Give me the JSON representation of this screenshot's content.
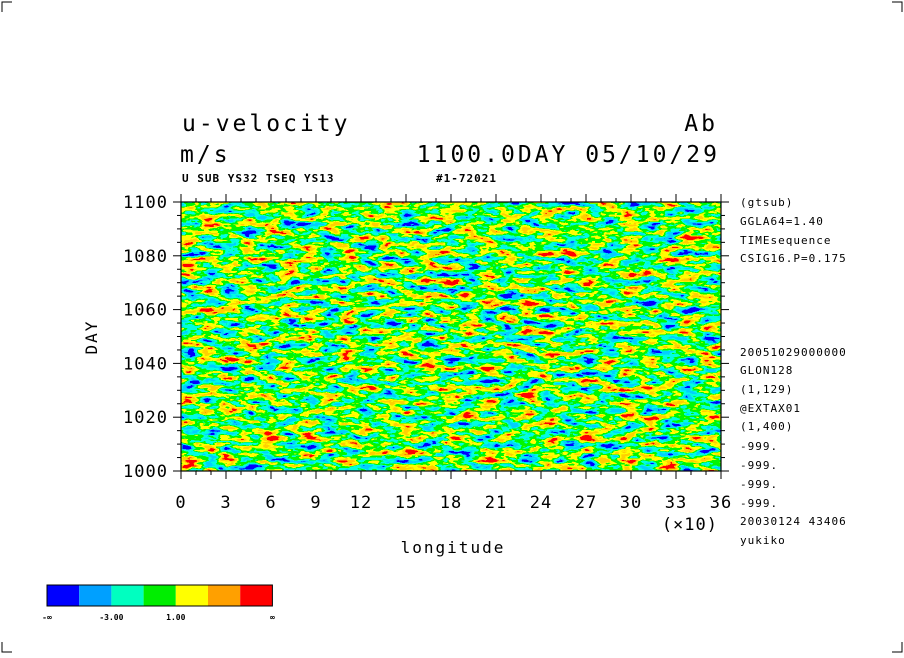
{
  "header": {
    "title": "u-velocity",
    "units": "m/s",
    "run_tag": "Ab",
    "date_label": "1100.0DAY 05/10/29",
    "subtitle_left": "U SUB YS32 TSEQ YS13",
    "subtitle_right": "#1-72021"
  },
  "chart_data": {
    "type": "heatmap",
    "title": "u-velocity",
    "xlabel": "longitude",
    "x_multiplier": "(×10)",
    "ylabel": "DAY",
    "xlim": [
      0,
      36
    ],
    "ylim": [
      1000,
      1100
    ],
    "x_ticks": [
      "0",
      "3",
      "6",
      "9",
      "12",
      "15",
      "18",
      "21",
      "24",
      "27",
      "30",
      "33",
      "36"
    ],
    "y_ticks": [
      "1000",
      "1020",
      "1040",
      "1060",
      "1080",
      "1100"
    ],
    "color_levels": [
      "#0000ff",
      "#00a0ff",
      "#00ffc0",
      "#00ee00",
      "#ffff00",
      "#ffa000",
      "#ff0000"
    ],
    "legend_labels": [
      "-∞",
      "-3.00",
      "1.00",
      "∞"
    ],
    "grid": false,
    "legend_position": "bottom-left"
  },
  "info_panel": [
    "(gtsub)",
    "GGLA64=1.40",
    "TIMEsequence",
    "CSIG16.P=0.175",
    "20051029000000",
    "GLON128",
    "(1,129)",
    "@EXTAX01",
    "(1,400)",
    "-999.",
    "-999.",
    "-999.",
    "-999.",
    "20030124  43406",
    "yukiko"
  ]
}
